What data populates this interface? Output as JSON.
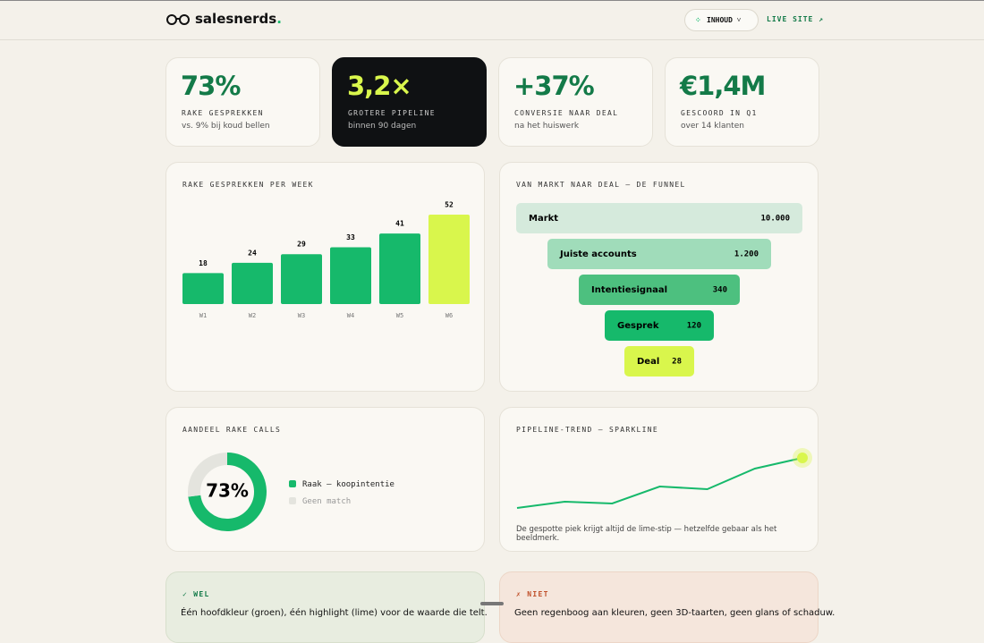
{
  "header": {
    "logo": "salesnerds",
    "logo_dot": ".",
    "menu": "INHOUD",
    "link": "LIVE SITE ↗"
  },
  "kpis": [
    {
      "value": "73%",
      "label": "RAKE GESPREKKEN",
      "note": "vs. 9% bij koud bellen"
    },
    {
      "value": "3,2×",
      "label": "GROTERE PIPELINE",
      "note": "binnen 90 dagen"
    },
    {
      "value": "+37%",
      "label": "CONVERSIE NAAR DEAL",
      "note": "na het huiswerk"
    },
    {
      "value": "€1,4M",
      "label": "GESCOORD IN Q1",
      "note": "over 14 klanten"
    }
  ],
  "chart_data": [
    {
      "type": "bar",
      "title": "RAKE GESPREKKEN PER WEEK",
      "categories": [
        "W1",
        "W2",
        "W3",
        "W4",
        "W5",
        "W6"
      ],
      "values": [
        18,
        24,
        29,
        33,
        41,
        52
      ],
      "colors": [
        "#16b96b",
        "#16b96b",
        "#16b96b",
        "#16b96b",
        "#16b96b",
        "#d9f64c"
      ]
    },
    {
      "type": "funnel",
      "title": "VAN MARKT NAAR DEAL — DE FUNNEL",
      "categories": [
        "Markt",
        "Juiste accounts",
        "Intentiesignaal",
        "Gesprek",
        "Deal"
      ],
      "values": [
        10000,
        1200,
        340,
        120,
        28
      ],
      "value_labels": [
        "10.000",
        "1.200",
        "340",
        "120",
        "28"
      ],
      "colors": [
        "#d5eadc",
        "#a0dcba",
        "#4dc07f",
        "#16b96b",
        "#d9f64c"
      ]
    },
    {
      "type": "donut",
      "title": "AANDEEL RAKE CALLS",
      "series": [
        {
          "name": "Raak — koopintentie",
          "color": "#16b96b",
          "values": [
            73
          ]
        },
        {
          "name": "Geen match",
          "color": "#e4e4de",
          "values": [
            27
          ]
        }
      ],
      "center_label": "73%"
    },
    {
      "type": "line",
      "title": "PIPELINE-TREND — SPARKLINE",
      "values": [
        13,
        20,
        18,
        37,
        34,
        57,
        69
      ],
      "color": "#16b96b",
      "highlight_color": "#d9f64c",
      "caption": "De gespotte piek krijgt altijd de lime-stip — hetzelfde gebaar als het beeldmerk."
    }
  ],
  "notes": [
    {
      "title": "✓ WEL",
      "text": "Één hoofdkleur (groen), één highlight (lime) voor de waarde die telt."
    },
    {
      "title": "✗ NIET",
      "text": "Geen regenboog aan kleuren, geen 3D-taarten, geen glans of schaduw."
    }
  ]
}
